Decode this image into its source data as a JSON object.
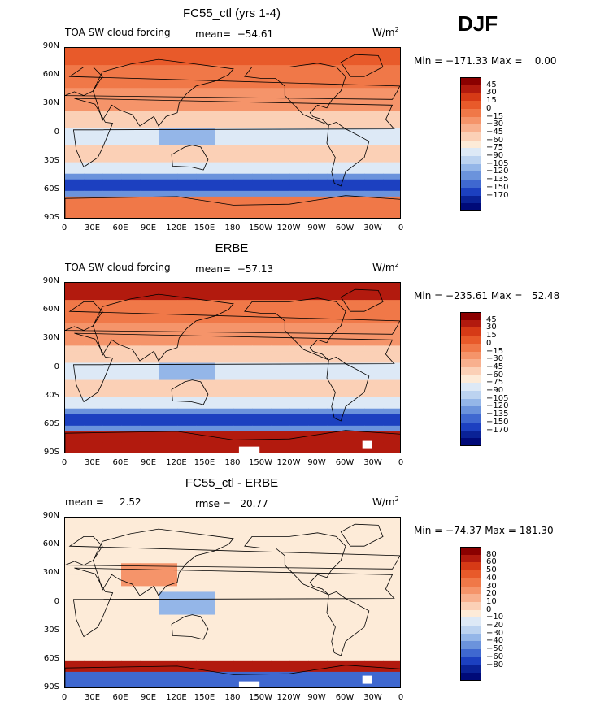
{
  "season": "DJF",
  "units_base": "W/m",
  "units_exp": "2",
  "x_ticks": [
    "0",
    "30E",
    "60E",
    "90E",
    "120E",
    "150E",
    "180",
    "150W",
    "120W",
    "90W",
    "60W",
    "30W",
    "0"
  ],
  "y_ticks": [
    "90N",
    "60N",
    "30N",
    "0",
    "30S",
    "60S",
    "90S"
  ],
  "panels": [
    {
      "title": "FC55_ctl (yrs 1-4)",
      "left_label": "TOA SW cloud forcing",
      "mid_label": "mean=  −54.61",
      "minmax": "Min = −171.33 Max =    0.00",
      "colorbar_labels": [
        "45",
        "30",
        "15",
        "0",
        "−15",
        "−30",
        "−45",
        "−60",
        "−75",
        "−90",
        "−105",
        "−120",
        "−135",
        "−150",
        "−170"
      ],
      "colorbar_colors": [
        "#8b0000",
        "#b21a0e",
        "#d63a16",
        "#e85a2a",
        "#f07848",
        "#f5946a",
        "#f8b08e",
        "#fbd0b6",
        "#fdebd8",
        "#dde9f6",
        "#bcd3f0",
        "#94b6e8",
        "#6b93dc",
        "#3f68d0",
        "#1c40c0",
        "#0a2296",
        "#000a78"
      ]
    },
    {
      "title": "ERBE",
      "left_label": "TOA SW cloud forcing",
      "mid_label": "mean=  −57.13",
      "minmax": "Min = −235.61 Max =   52.48",
      "colorbar_labels": [
        "45",
        "30",
        "15",
        "0",
        "−15",
        "−30",
        "−45",
        "−60",
        "−75",
        "−90",
        "−105",
        "−120",
        "−135",
        "−150",
        "−170"
      ],
      "colorbar_colors": [
        "#8b0000",
        "#b21a0e",
        "#d63a16",
        "#e85a2a",
        "#f07848",
        "#f5946a",
        "#f8b08e",
        "#fbd0b6",
        "#fdebd8",
        "#dde9f6",
        "#bcd3f0",
        "#94b6e8",
        "#6b93dc",
        "#3f68d0",
        "#1c40c0",
        "#0a2296",
        "#000a78"
      ]
    },
    {
      "title": "FC55_ctl - ERBE",
      "left_label": "mean =     2.52",
      "mid_label": "rmse =   20.77",
      "minmax": "Min = −74.37 Max = 181.30",
      "colorbar_labels": [
        "80",
        "60",
        "50",
        "40",
        "30",
        "20",
        "10",
        "0",
        "−10",
        "−20",
        "−30",
        "−40",
        "−50",
        "−60",
        "−80"
      ],
      "colorbar_colors": [
        "#8b0000",
        "#b21a0e",
        "#d63a16",
        "#e85a2a",
        "#f07848",
        "#f5946a",
        "#f8b08e",
        "#fbd0b6",
        "#fdebd8",
        "#dde9f6",
        "#bcd3f0",
        "#94b6e8",
        "#6b93dc",
        "#3f68d0",
        "#1c40c0",
        "#0a2296",
        "#000a78"
      ]
    }
  ]
}
